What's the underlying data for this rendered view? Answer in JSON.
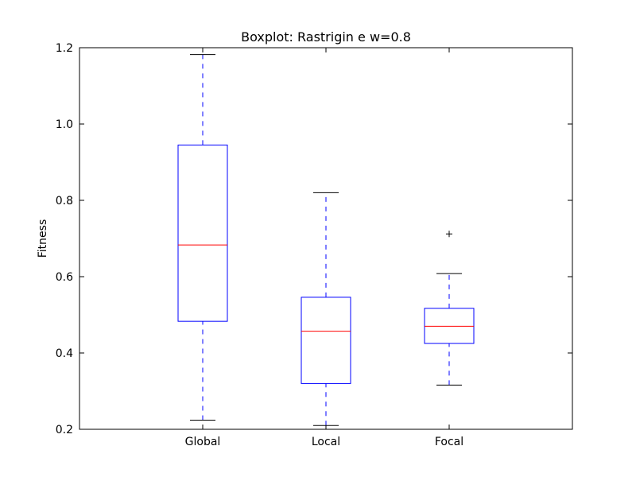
{
  "chart_data": {
    "type": "boxplot",
    "title": "Boxplot: Rastrigin e w=0.8",
    "xlabel": "",
    "ylabel": "Fitness",
    "ylim": [
      0.2,
      1.2
    ],
    "yticks": [
      "0.2",
      "0.4",
      "0.6",
      "0.8",
      "1.0",
      "1.2"
    ],
    "grid": false,
    "categories": [
      "Global",
      "Local",
      "Focal"
    ],
    "boxes": [
      {
        "category": "Global",
        "whisker_low": 0.224,
        "q1": 0.483,
        "median": 0.683,
        "q3": 0.945,
        "whisker_high": 1.182,
        "outliers": []
      },
      {
        "category": "Local",
        "whisker_low": 0.21,
        "q1": 0.32,
        "median": 0.457,
        "q3": 0.546,
        "whisker_high": 0.82,
        "outliers": []
      },
      {
        "category": "Focal",
        "whisker_low": 0.316,
        "q1": 0.425,
        "median": 0.47,
        "q3": 0.517,
        "whisker_high": 0.608,
        "outliers": [
          0.712
        ]
      }
    ],
    "colors": {
      "box": "#0000ff",
      "median": "#ff0000",
      "whisker": "#0000ff",
      "cap": "#000000",
      "outlier": "#000000"
    }
  }
}
